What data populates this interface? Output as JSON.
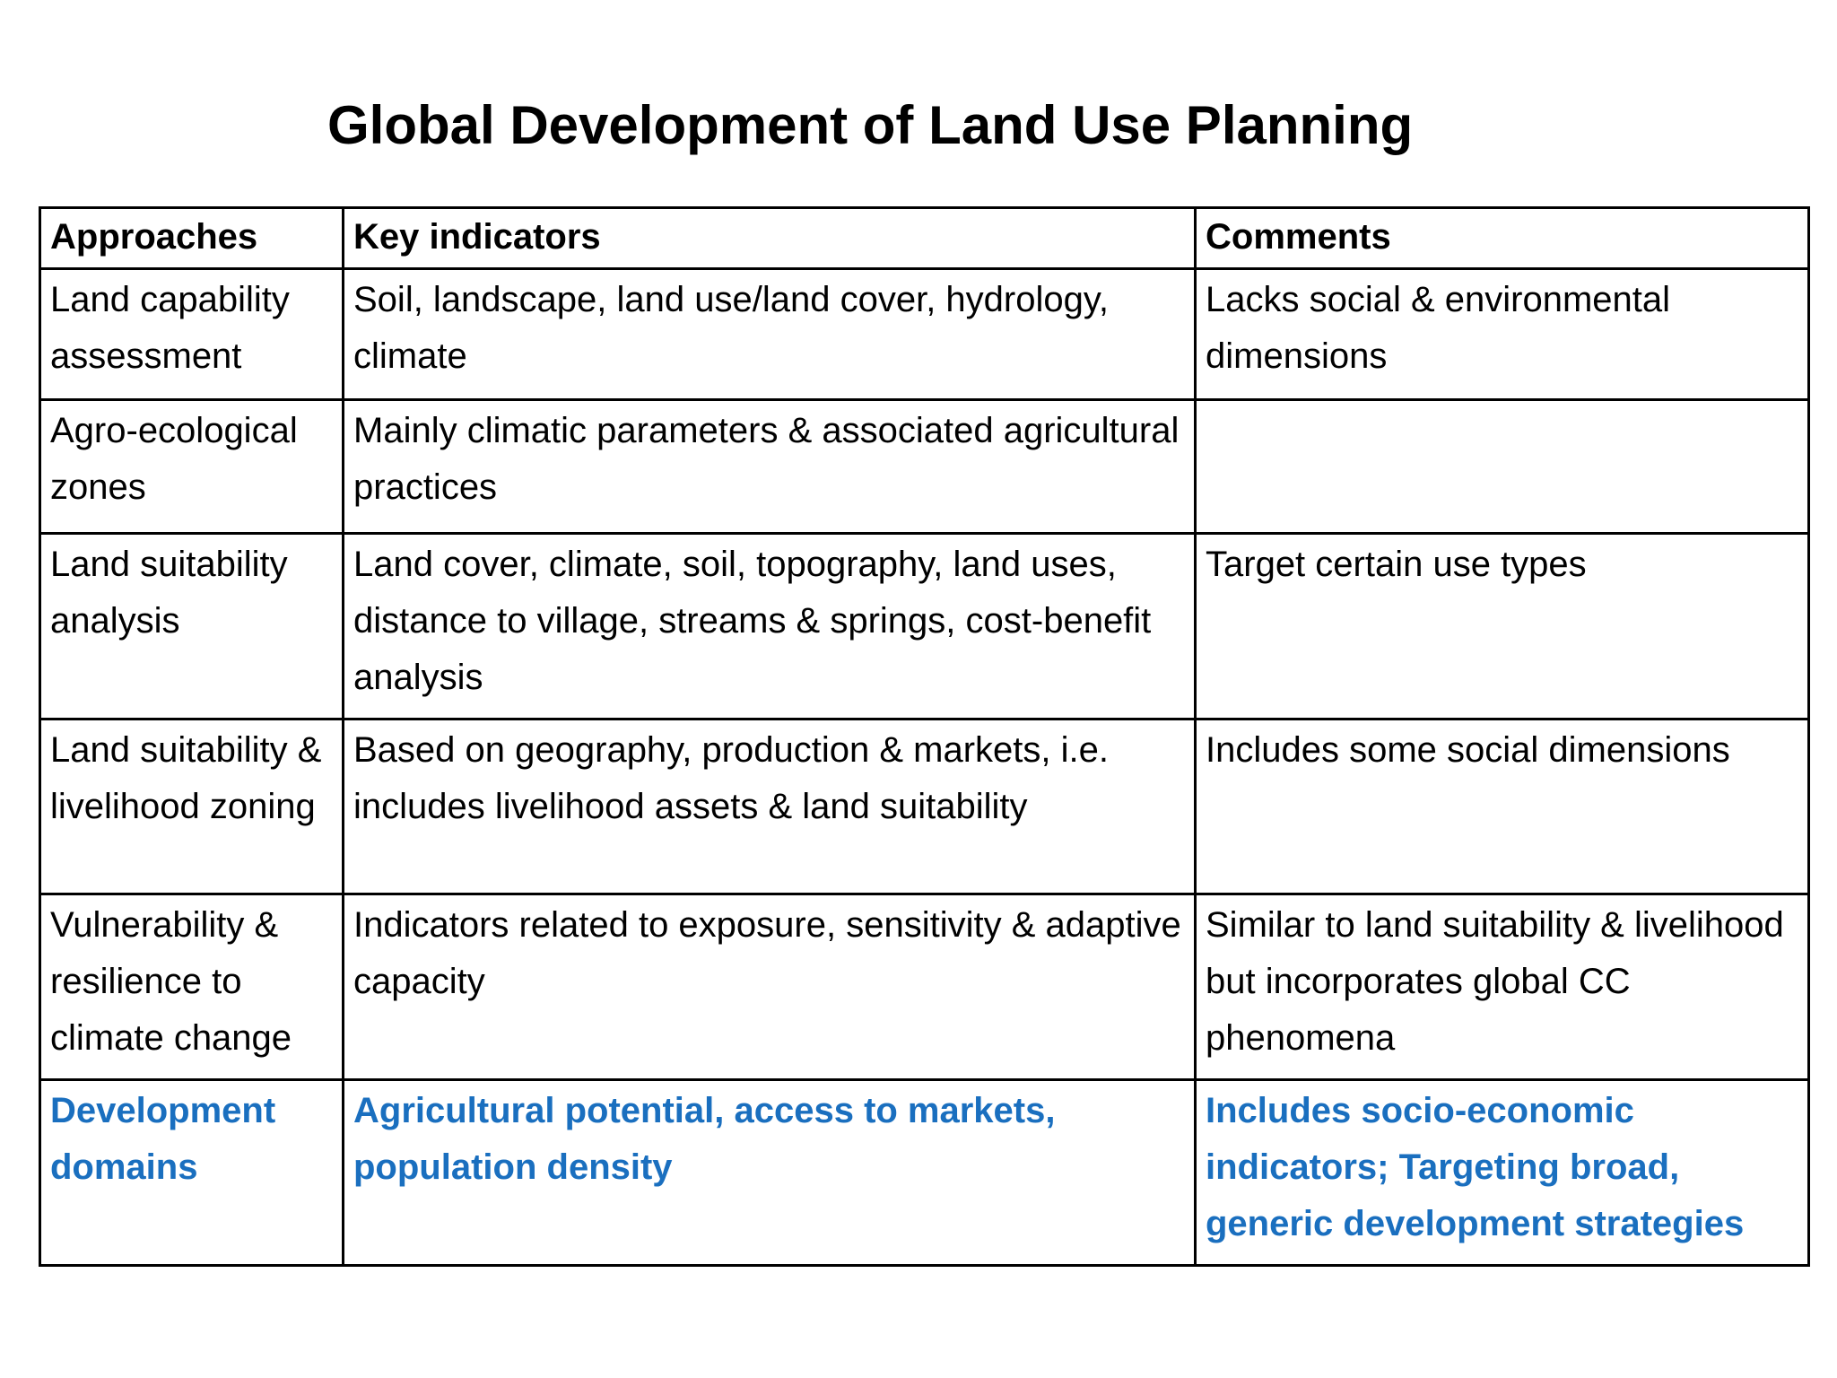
{
  "title": "Global Development of Land Use Planning",
  "table": {
    "headers": [
      "Approaches",
      "Key indicators",
      "Comments"
    ],
    "rows": [
      {
        "approach": "Land capability assessment",
        "indicators": "Soil, landscape, land use/land cover, hydrology, climate",
        "comments": "Lacks social & environmental dimensions"
      },
      {
        "approach": "Agro-ecological zones",
        "indicators": "Mainly climatic parameters & associated agricultural practices",
        "comments": ""
      },
      {
        "approach": "Land suitability analysis",
        "indicators": "Land cover, climate, soil, topography, land uses, distance to village, streams & springs, cost-benefit analysis",
        "comments": "Target certain use types"
      },
      {
        "approach": "Land suitability & livelihood zoning",
        "indicators": "Based on geography, production & markets, i.e. includes livelihood assets & land suitability",
        "comments": "Includes some social dimensions"
      },
      {
        "approach": "Vulnerability & resilience to climate change",
        "indicators": "Indicators related to exposure, sensitivity & adaptive capacity",
        "comments": "Similar to land suitability & livelihood but incorporates global CC phenomena"
      },
      {
        "approach": "Development domains",
        "indicators": "Agricultural potential, access to markets, population density",
        "comments": "Includes socio-economic indicators; Targeting broad, generic development strategies"
      }
    ]
  },
  "colors": {
    "highlight": "#1a6fbf",
    "text": "#000000",
    "border": "#000000"
  }
}
